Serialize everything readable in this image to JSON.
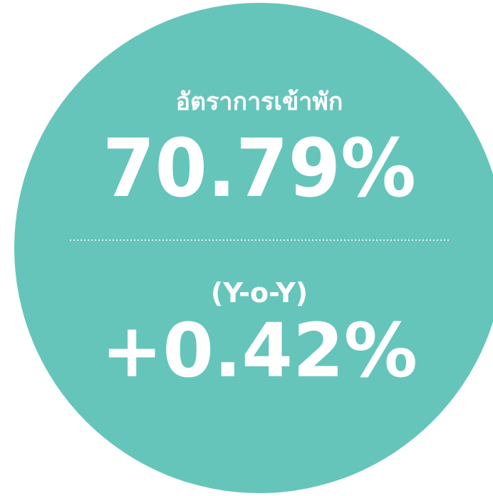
{
  "label": "อัตราการเข้าพัก",
  "value": "70.79%",
  "change_label": "(Y-o-Y)",
  "change_value": "+0.42%"
}
